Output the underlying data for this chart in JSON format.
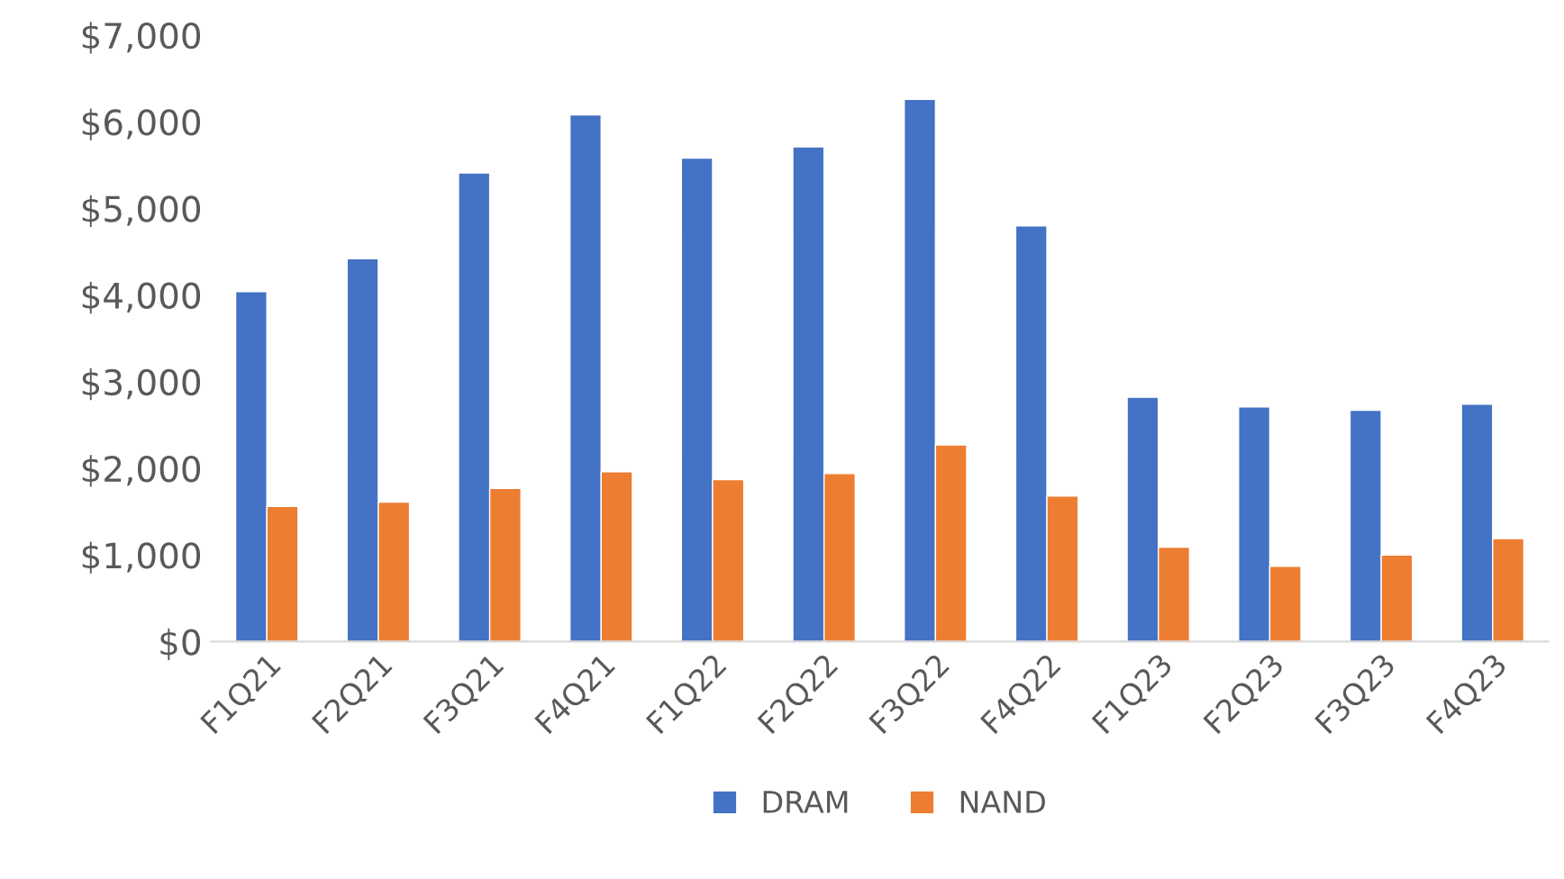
{
  "chart_data": {
    "type": "bar",
    "categories": [
      "F1Q21",
      "F2Q21",
      "F3Q21",
      "F4Q21",
      "F1Q22",
      "F2Q22",
      "F3Q22",
      "F4Q22",
      "F1Q23",
      "F2Q23",
      "F3Q23",
      "F4Q23"
    ],
    "series": [
      {
        "name": "DRAM",
        "color": "#4472c4",
        "values": [
          4040,
          4420,
          5410,
          6080,
          5580,
          5710,
          6260,
          4800,
          2820,
          2710,
          2670,
          2740
        ]
      },
      {
        "name": "NAND",
        "color": "#ed7d31",
        "values": [
          1560,
          1610,
          1770,
          1960,
          1870,
          1940,
          2270,
          1680,
          1090,
          870,
          1000,
          1190
        ]
      }
    ],
    "ylim": [
      0,
      7000
    ],
    "yticks": [
      {
        "value": 0,
        "label": "$0"
      },
      {
        "value": 1000,
        "label": "$1,000"
      },
      {
        "value": 2000,
        "label": "$2,000"
      },
      {
        "value": 3000,
        "label": "$3,000"
      },
      {
        "value": 4000,
        "label": "$4,000"
      },
      {
        "value": 5000,
        "label": "$5,000"
      },
      {
        "value": 6000,
        "label": "$6,000"
      },
      {
        "value": 7000,
        "label": "$7,000"
      }
    ],
    "grid": false,
    "legend": "bottom"
  }
}
